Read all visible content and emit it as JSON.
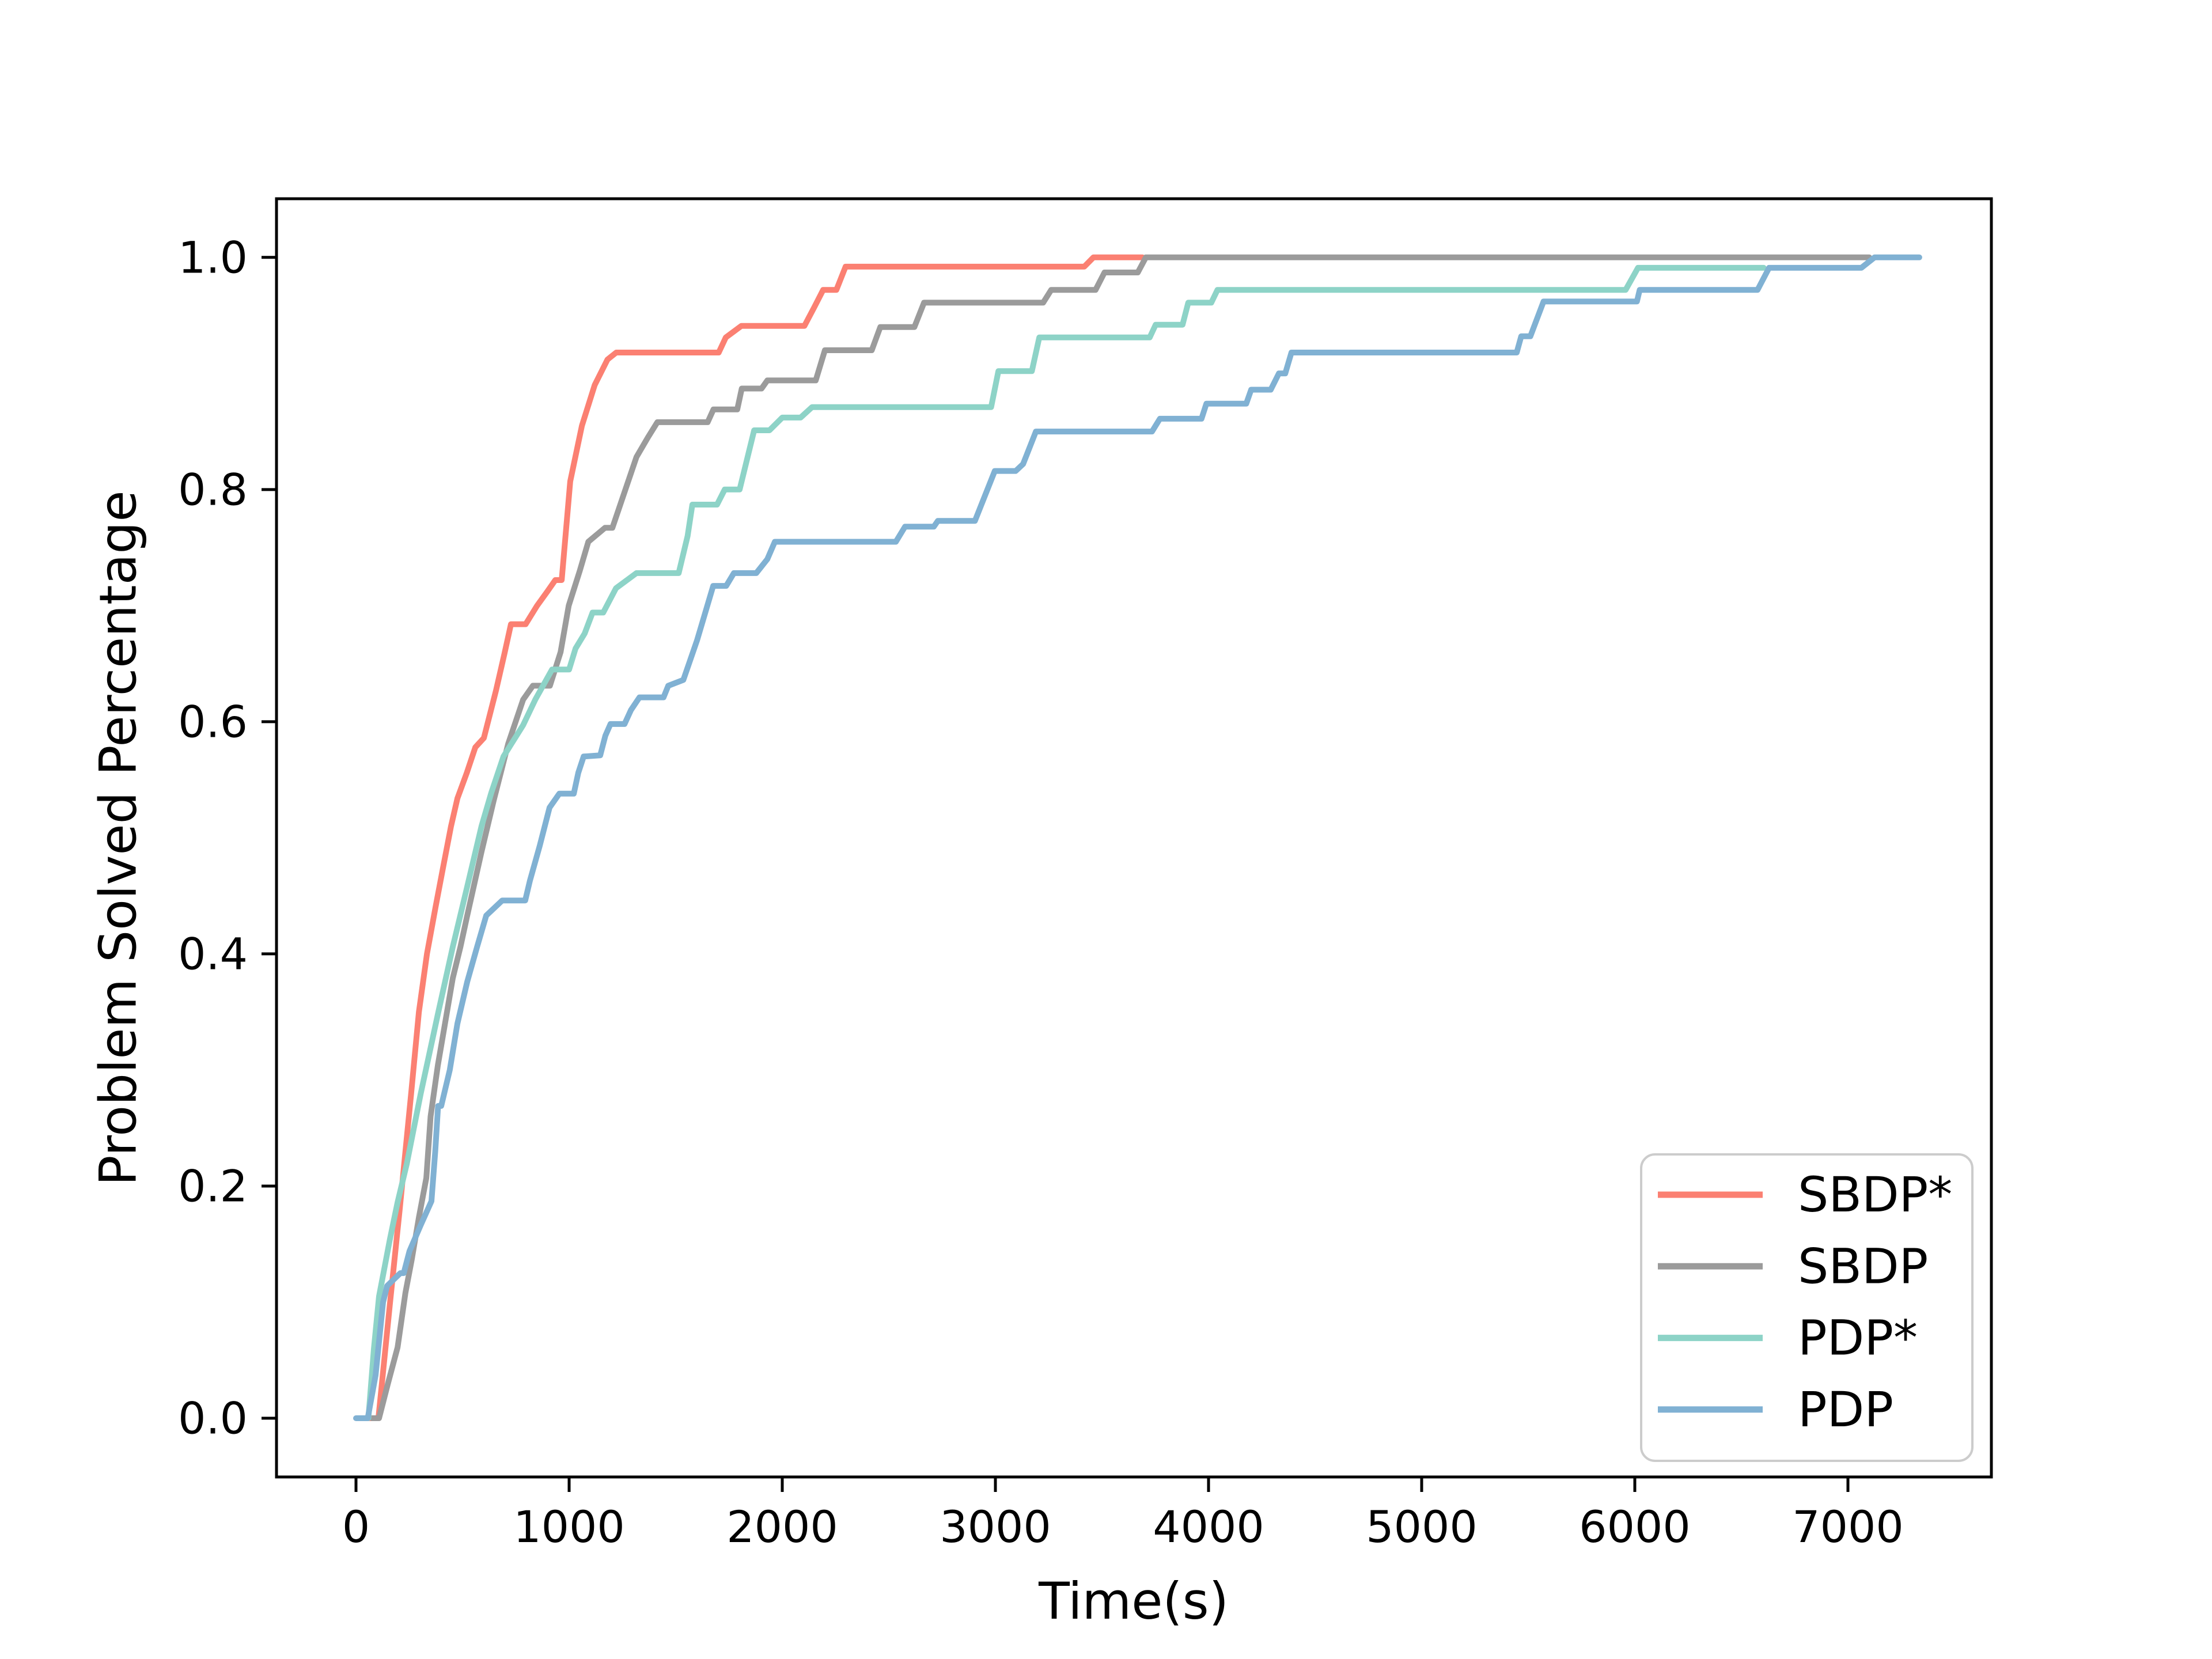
{
  "figure": {
    "background": "#ffffff",
    "xlabel": "Time(s)",
    "ylabel": "Problem Solved Percentage"
  },
  "chart_data": {
    "type": "line",
    "style": "step-cdf",
    "title": "",
    "xlabel": "Time(s)",
    "ylabel": "Problem Solved Percentage",
    "grid": false,
    "legend_position": "lower right",
    "xlim": [
      -373,
      7673
    ],
    "ylim": [
      -0.0506,
      1.0505
    ],
    "x_ticks": [
      0,
      1000,
      2000,
      3000,
      4000,
      5000,
      6000,
      7000
    ],
    "x_tick_labels": [
      "0",
      "1000",
      "2000",
      "3000",
      "4000",
      "5000",
      "6000",
      "7000"
    ],
    "y_ticks": [
      0.0,
      0.2,
      0.4,
      0.6,
      0.8,
      1.0
    ],
    "y_tick_labels": [
      "0.0",
      "0.2",
      "0.4",
      "0.6",
      "0.8",
      "1.0"
    ],
    "axis_color": "#000000",
    "legend_border_color": "#cccccc",
    "series": [
      {
        "name": "SBDP*",
        "color": "#FB8072",
        "points": [
          [
            60,
            0
          ],
          [
            105,
            0
          ],
          [
            160,
            0.1
          ],
          [
            205,
            0.18
          ],
          [
            259,
            0.28
          ],
          [
            295,
            0.35
          ],
          [
            333,
            0.4
          ],
          [
            373,
            0.44
          ],
          [
            408,
            0.474
          ],
          [
            446,
            0.51
          ],
          [
            476,
            0.534
          ],
          [
            520,
            0.556
          ],
          [
            560,
            0.578
          ],
          [
            600,
            0.586
          ],
          [
            657,
            0.627
          ],
          [
            697,
            0.659
          ],
          [
            727,
            0.684
          ],
          [
            796,
            0.684
          ],
          [
            850,
            0.7
          ],
          [
            897,
            0.712
          ],
          [
            935,
            0.722
          ],
          [
            965,
            0.722
          ],
          [
            1005,
            0.807
          ],
          [
            1060,
            0.855
          ],
          [
            1120,
            0.89
          ],
          [
            1180,
            0.912
          ],
          [
            1221,
            0.918
          ],
          [
            1702,
            0.918
          ],
          [
            1735,
            0.931
          ],
          [
            1808,
            0.941
          ],
          [
            2104,
            0.941
          ],
          [
            2150,
            0.957
          ],
          [
            2192,
            0.972
          ],
          [
            2254,
            0.972
          ],
          [
            2297,
            0.992
          ],
          [
            3417,
            0.992
          ],
          [
            3460,
            1.0
          ],
          [
            3690,
            1.0
          ]
        ]
      },
      {
        "name": "SBDP",
        "color": "#9B9B9B",
        "points": [
          [
            75,
            0
          ],
          [
            108,
            0
          ],
          [
            150,
            0.03
          ],
          [
            195,
            0.061
          ],
          [
            232,
            0.108
          ],
          [
            262,
            0.137
          ],
          [
            295,
            0.173
          ],
          [
            330,
            0.207
          ],
          [
            350,
            0.26
          ],
          [
            384,
            0.304
          ],
          [
            454,
            0.379
          ],
          [
            490,
            0.406
          ],
          [
            522,
            0.433
          ],
          [
            589,
            0.488
          ],
          [
            646,
            0.532
          ],
          [
            714,
            0.581
          ],
          [
            784,
            0.619
          ],
          [
            830,
            0.631
          ],
          [
            910,
            0.631
          ],
          [
            960,
            0.66
          ],
          [
            998,
            0.7
          ],
          [
            1050,
            0.73
          ],
          [
            1090,
            0.755
          ],
          [
            1168,
            0.767
          ],
          [
            1203,
            0.767
          ],
          [
            1316,
            0.828
          ],
          [
            1370,
            0.845
          ],
          [
            1414,
            0.858
          ],
          [
            1650,
            0.858
          ],
          [
            1677,
            0.869
          ],
          [
            1789,
            0.869
          ],
          [
            1810,
            0.887
          ],
          [
            1903,
            0.887
          ],
          [
            1930,
            0.894
          ],
          [
            2157,
            0.894
          ],
          [
            2200,
            0.92
          ],
          [
            2420,
            0.92
          ],
          [
            2460,
            0.94
          ],
          [
            2620,
            0.94
          ],
          [
            2665,
            0.961
          ],
          [
            3224,
            0.961
          ],
          [
            3262,
            0.972
          ],
          [
            3470,
            0.972
          ],
          [
            3512,
            0.987
          ],
          [
            3668,
            0.987
          ],
          [
            3706,
            1.0
          ],
          [
            7100,
            1.0
          ]
        ]
      },
      {
        "name": "PDP*",
        "color": "#8DD3C7",
        "points": [
          [
            40,
            0
          ],
          [
            58,
            0
          ],
          [
            84,
            0.06
          ],
          [
            108,
            0.105
          ],
          [
            159,
            0.154
          ],
          [
            195,
            0.186
          ],
          [
            238,
            0.219
          ],
          [
            303,
            0.279
          ],
          [
            384,
            0.348
          ],
          [
            454,
            0.406
          ],
          [
            522,
            0.458
          ],
          [
            589,
            0.51
          ],
          [
            635,
            0.539
          ],
          [
            692,
            0.57
          ],
          [
            784,
            0.597
          ],
          [
            841,
            0.619
          ],
          [
            920,
            0.645
          ],
          [
            1000,
            0.645
          ],
          [
            1030,
            0.663
          ],
          [
            1073,
            0.676
          ],
          [
            1110,
            0.694
          ],
          [
            1160,
            0.694
          ],
          [
            1220,
            0.715
          ],
          [
            1316,
            0.728
          ],
          [
            1514,
            0.728
          ],
          [
            1556,
            0.76
          ],
          [
            1578,
            0.787
          ],
          [
            1694,
            0.787
          ],
          [
            1730,
            0.8
          ],
          [
            1800,
            0.8
          ],
          [
            1868,
            0.851
          ],
          [
            1940,
            0.851
          ],
          [
            2000,
            0.862
          ],
          [
            2086,
            0.862
          ],
          [
            2140,
            0.871
          ],
          [
            2980,
            0.871
          ],
          [
            3014,
            0.902
          ],
          [
            3171,
            0.902
          ],
          [
            3206,
            0.931
          ],
          [
            3724,
            0.931
          ],
          [
            3752,
            0.942
          ],
          [
            3878,
            0.942
          ],
          [
            3905,
            0.961
          ],
          [
            4013,
            0.961
          ],
          [
            4042,
            0.972
          ],
          [
            5957,
            0.972
          ],
          [
            6015,
            0.991
          ],
          [
            6605,
            0.991
          ]
        ]
      },
      {
        "name": "PDP",
        "color": "#80B1D3",
        "points": [
          [
            0,
            0
          ],
          [
            55,
            0
          ],
          [
            92,
            0.037
          ],
          [
            127,
            0.1
          ],
          [
            146,
            0.114
          ],
          [
            208,
            0.125
          ],
          [
            224,
            0.125
          ],
          [
            251,
            0.144
          ],
          [
            305,
            0.167
          ],
          [
            354,
            0.187
          ],
          [
            372,
            0.23
          ],
          [
            385,
            0.269
          ],
          [
            400,
            0.269
          ],
          [
            440,
            0.3
          ],
          [
            476,
            0.34
          ],
          [
            522,
            0.376
          ],
          [
            568,
            0.406
          ],
          [
            611,
            0.433
          ],
          [
            686,
            0.446
          ],
          [
            794,
            0.446
          ],
          [
            816,
            0.463
          ],
          [
            862,
            0.493
          ],
          [
            908,
            0.526
          ],
          [
            954,
            0.538
          ],
          [
            1022,
            0.538
          ],
          [
            1043,
            0.556
          ],
          [
            1068,
            0.57
          ],
          [
            1146,
            0.571
          ],
          [
            1170,
            0.588
          ],
          [
            1194,
            0.598
          ],
          [
            1260,
            0.598
          ],
          [
            1290,
            0.61
          ],
          [
            1330,
            0.621
          ],
          [
            1443,
            0.621
          ],
          [
            1465,
            0.631
          ],
          [
            1536,
            0.636
          ],
          [
            1600,
            0.67
          ],
          [
            1676,
            0.717
          ],
          [
            1737,
            0.717
          ],
          [
            1773,
            0.728
          ],
          [
            1878,
            0.728
          ],
          [
            1930,
            0.74
          ],
          [
            1965,
            0.755
          ],
          [
            2533,
            0.755
          ],
          [
            2576,
            0.768
          ],
          [
            2711,
            0.768
          ],
          [
            2730,
            0.773
          ],
          [
            2904,
            0.773
          ],
          [
            2997,
            0.816
          ],
          [
            3095,
            0.816
          ],
          [
            3130,
            0.822
          ],
          [
            3190,
            0.85
          ],
          [
            3735,
            0.85
          ],
          [
            3772,
            0.861
          ],
          [
            3967,
            0.861
          ],
          [
            3990,
            0.874
          ],
          [
            4177,
            0.874
          ],
          [
            4200,
            0.886
          ],
          [
            4292,
            0.886
          ],
          [
            4330,
            0.9
          ],
          [
            4360,
            0.9
          ],
          [
            4389,
            0.918
          ],
          [
            5446,
            0.918
          ],
          [
            5467,
            0.932
          ],
          [
            5510,
            0.932
          ],
          [
            5572,
            0.962
          ],
          [
            6010,
            0.962
          ],
          [
            6023,
            0.972
          ],
          [
            6576,
            0.972
          ],
          [
            6630,
            0.991
          ],
          [
            7063,
            0.991
          ],
          [
            7125,
            1.0
          ],
          [
            7335,
            1.0
          ]
        ]
      }
    ]
  }
}
